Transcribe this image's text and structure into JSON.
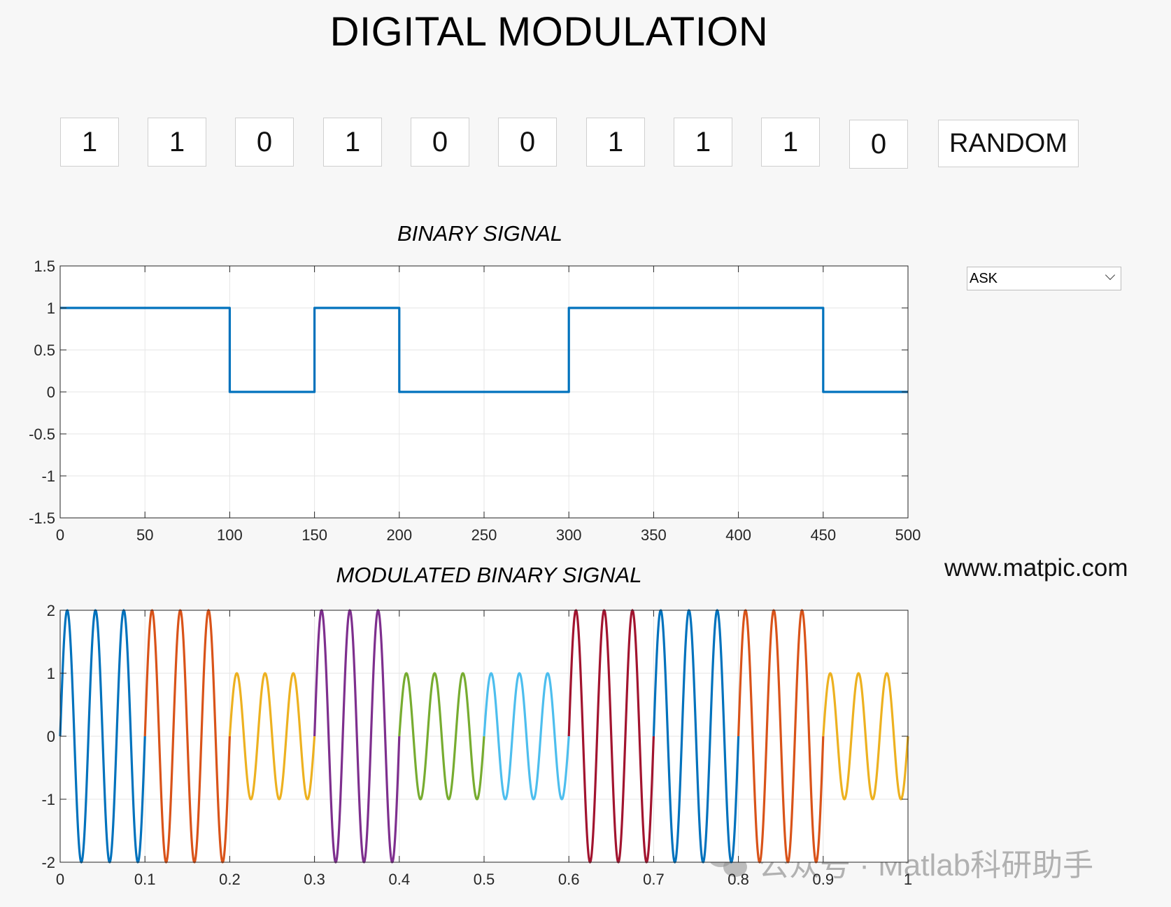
{
  "title": "DIGITAL MODULATION",
  "bits": [
    "1",
    "1",
    "0",
    "1",
    "0",
    "0",
    "1",
    "1",
    "1",
    "0"
  ],
  "random_button": "RANDOM",
  "modulation_select": {
    "selected": "ASK"
  },
  "website": "www.matpic.com",
  "wechat_watermark": "公众号 · Matlab科研助手",
  "colors": {
    "binary_line": "#0072bd",
    "segment_colors": [
      "#0072bd",
      "#d95319",
      "#edb120",
      "#7e2f8e",
      "#77ac30",
      "#4dbeee",
      "#a2142f"
    ]
  },
  "chart_data": [
    {
      "type": "line",
      "title": "BINARY SIGNAL",
      "xlabel": "",
      "ylabel": "",
      "xlim": [
        0,
        500
      ],
      "ylim": [
        -1.5,
        1.5
      ],
      "xticks": [
        0,
        50,
        100,
        150,
        200,
        250,
        300,
        350,
        400,
        450,
        500
      ],
      "yticks": [
        1.5,
        1,
        0.5,
        0,
        -0.5,
        -1,
        -1.5
      ],
      "grid": true,
      "series": [
        {
          "x": [
            0,
            100,
            100,
            150,
            150,
            200,
            200,
            300,
            300,
            450,
            450,
            500
          ],
          "values": [
            1,
            1,
            0,
            0,
            1,
            1,
            0,
            0,
            1,
            1,
            0,
            0
          ]
        }
      ]
    },
    {
      "type": "line",
      "title": "MODULATED BINARY SIGNAL",
      "xlabel": "",
      "ylabel": "",
      "xlim": [
        0,
        1
      ],
      "ylim": [
        -2,
        2
      ],
      "xticks": [
        0,
        0.1,
        0.2,
        0.3,
        0.4,
        0.5,
        0.6,
        0.7,
        0.8,
        0.9,
        1
      ],
      "yticks": [
        2,
        1,
        0,
        -1,
        -2
      ],
      "grid": true,
      "cycles_per_segment": 3,
      "segments": [
        {
          "start": 0.0,
          "end": 0.1,
          "amplitude": 2
        },
        {
          "start": 0.1,
          "end": 0.2,
          "amplitude": 2
        },
        {
          "start": 0.2,
          "end": 0.3,
          "amplitude": 1
        },
        {
          "start": 0.3,
          "end": 0.4,
          "amplitude": 2
        },
        {
          "start": 0.4,
          "end": 0.5,
          "amplitude": 1
        },
        {
          "start": 0.5,
          "end": 0.6,
          "amplitude": 1
        },
        {
          "start": 0.6,
          "end": 0.7,
          "amplitude": 2
        },
        {
          "start": 0.7,
          "end": 0.8,
          "amplitude": 2
        },
        {
          "start": 0.8,
          "end": 0.9,
          "amplitude": 2
        },
        {
          "start": 0.9,
          "end": 1.0,
          "amplitude": 1
        }
      ]
    }
  ]
}
